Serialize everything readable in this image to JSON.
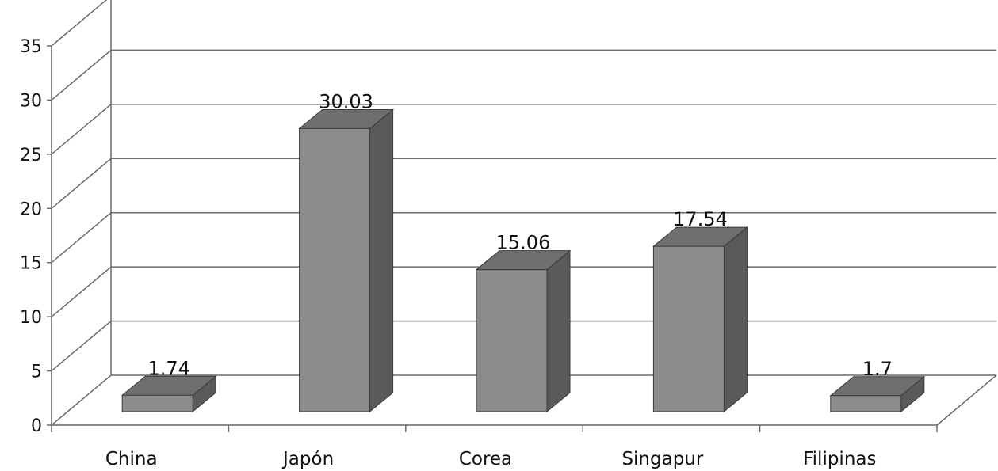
{
  "chart_data": {
    "type": "bar",
    "style": "3d-column",
    "title": "",
    "xlabel": "",
    "ylabel": "",
    "categories": [
      "China",
      "Japón",
      "Corea",
      "Singapur",
      "Filipinas"
    ],
    "values": [
      1.74,
      30.03,
      15.06,
      17.54,
      1.7
    ],
    "data_labels": [
      "1.74",
      "30.03",
      "15.06",
      "17.54",
      "1.7"
    ],
    "y_ticks": [
      0,
      5,
      10,
      15,
      20,
      25,
      30,
      35
    ],
    "ylim": [
      0,
      35
    ],
    "grid": true,
    "legend": "none",
    "colors": {
      "bar_front": "#8c8c8c",
      "bar_top": "#6f6f6f",
      "bar_side": "#5a5a5a",
      "bar_outline": "#3a3a3a",
      "gridline": "#6a6a6a",
      "axis": "#666666"
    }
  }
}
